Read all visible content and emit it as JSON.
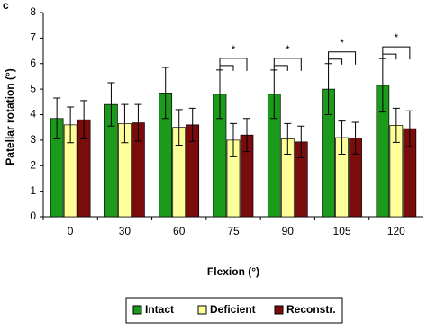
{
  "chart_data": {
    "type": "bar",
    "panel_label": "c",
    "x_label": "Flexion (°)",
    "y_label": "Patellar rotation (°)",
    "categories": [
      "0",
      "30",
      "60",
      "75",
      "90",
      "105",
      "120"
    ],
    "series": [
      {
        "name": "Intact",
        "color": "#1b9a1b",
        "values": [
          3.85,
          4.4,
          4.85,
          4.8,
          4.8,
          5.0,
          5.15
        ],
        "errors": [
          0.8,
          0.85,
          1.0,
          0.95,
          0.95,
          1.0,
          1.05
        ]
      },
      {
        "name": "Deficient",
        "color": "#ffff99",
        "values": [
          3.6,
          3.65,
          3.5,
          3.0,
          3.05,
          3.1,
          3.58
        ],
        "errors": [
          0.7,
          0.75,
          0.7,
          0.65,
          0.6,
          0.65,
          0.67
        ]
      },
      {
        "name": "Reconstr.",
        "color": "#7a0c0c",
        "values": [
          3.8,
          3.68,
          3.6,
          3.2,
          2.93,
          3.08,
          3.45
        ],
        "errors": [
          0.75,
          0.72,
          0.65,
          0.65,
          0.62,
          0.62,
          0.7
        ]
      }
    ],
    "annotations": [
      null,
      null,
      null,
      "*",
      "*",
      "*",
      "*"
    ],
    "ylim": [
      0,
      8
    ],
    "yticks": [
      0,
      1,
      2,
      3,
      4,
      5,
      6,
      7,
      8
    ],
    "grid": false,
    "legend": "bottom"
  }
}
